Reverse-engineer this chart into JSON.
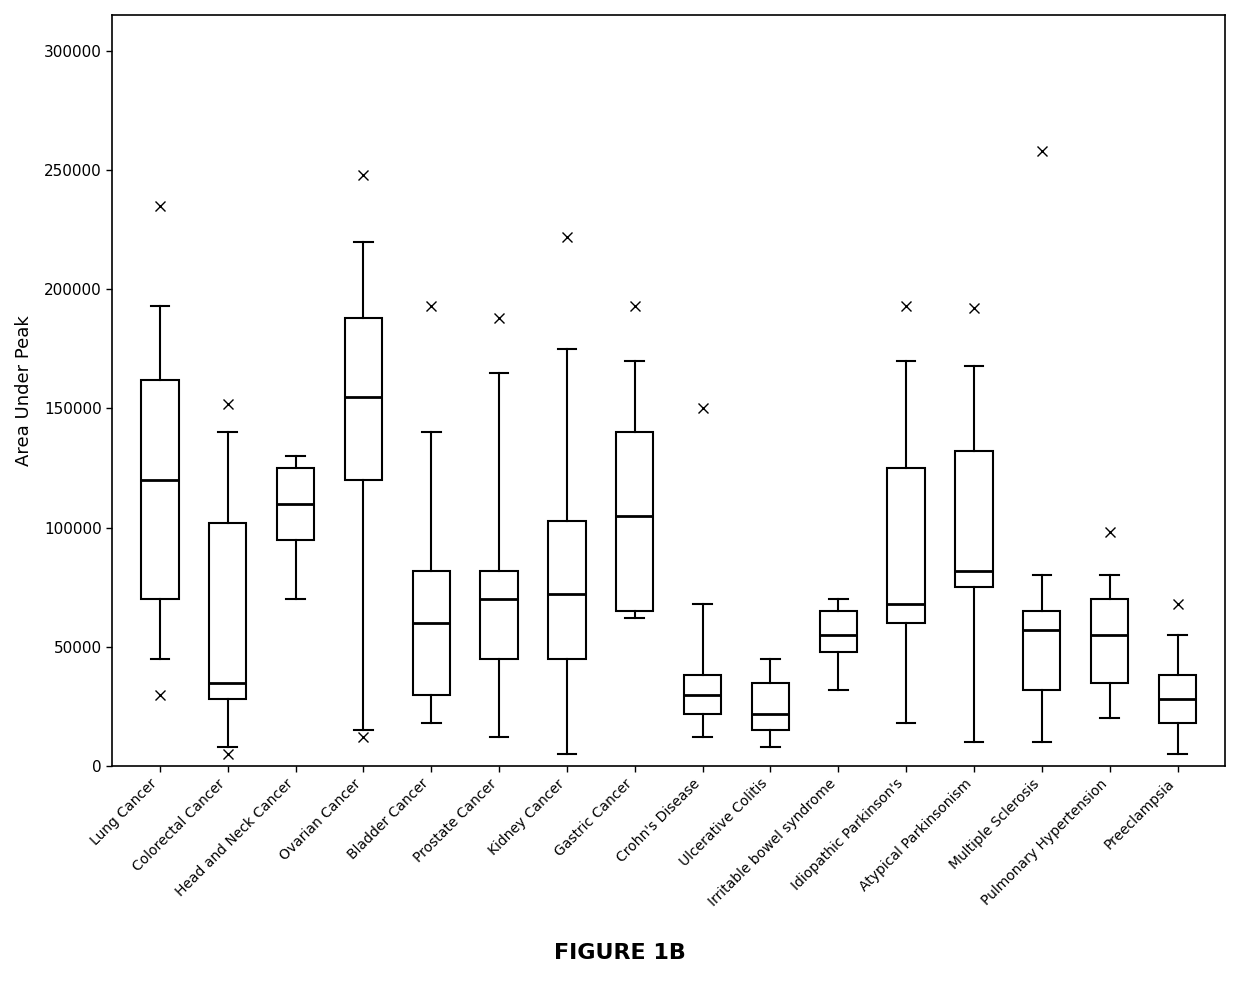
{
  "categories": [
    "Lung Cancer",
    "Colorectal Cancer",
    "Head and Neck Cancer",
    "Ovarian Cancer",
    "Bladder Cancer",
    "Prostate Cancer",
    "Kidney Cancer",
    "Gastric Cancer",
    "Crohn's Disease",
    "Ulcerative Colitis",
    "Irritable bowel syndrome",
    "Idiopathic Parkinson's",
    "Atypical Parkinsonism",
    "Multiple Sclerosis",
    "Pulmonary Hypertension",
    "Preeclampsia"
  ],
  "box_data": [
    {
      "q1": 70000,
      "median": 120000,
      "q3": 162000,
      "whislo": 45000,
      "whishi": 193000,
      "fliers_high": [
        235000
      ],
      "fliers_low": [
        30000
      ]
    },
    {
      "q1": 28000,
      "median": 35000,
      "q3": 102000,
      "whislo": 8000,
      "whishi": 140000,
      "fliers_high": [
        152000
      ],
      "fliers_low": [
        5000
      ]
    },
    {
      "q1": 95000,
      "median": 110000,
      "q3": 125000,
      "whislo": 70000,
      "whishi": 130000,
      "fliers_high": [],
      "fliers_low": []
    },
    {
      "q1": 120000,
      "median": 155000,
      "q3": 188000,
      "whislo": 15000,
      "whishi": 220000,
      "fliers_high": [
        248000
      ],
      "fliers_low": [
        12000
      ]
    },
    {
      "q1": 30000,
      "median": 60000,
      "q3": 82000,
      "whislo": 18000,
      "whishi": 140000,
      "fliers_high": [
        193000
      ],
      "fliers_low": []
    },
    {
      "q1": 45000,
      "median": 70000,
      "q3": 82000,
      "whislo": 12000,
      "whishi": 165000,
      "fliers_high": [
        188000
      ],
      "fliers_low": []
    },
    {
      "q1": 45000,
      "median": 72000,
      "q3": 103000,
      "whislo": 5000,
      "whishi": 175000,
      "fliers_high": [
        222000
      ],
      "fliers_low": []
    },
    {
      "q1": 65000,
      "median": 105000,
      "q3": 140000,
      "whislo": 62000,
      "whishi": 170000,
      "fliers_high": [
        193000
      ],
      "fliers_low": []
    },
    {
      "q1": 22000,
      "median": 30000,
      "q3": 38000,
      "whislo": 12000,
      "whishi": 68000,
      "fliers_high": [
        150000
      ],
      "fliers_low": []
    },
    {
      "q1": 15000,
      "median": 22000,
      "q3": 35000,
      "whislo": 8000,
      "whishi": 45000,
      "fliers_high": [],
      "fliers_low": []
    },
    {
      "q1": 48000,
      "median": 55000,
      "q3": 65000,
      "whislo": 32000,
      "whishi": 70000,
      "fliers_high": [],
      "fliers_low": []
    },
    {
      "q1": 60000,
      "median": 68000,
      "q3": 125000,
      "whislo": 18000,
      "whishi": 170000,
      "fliers_high": [
        193000
      ],
      "fliers_low": []
    },
    {
      "q1": 75000,
      "median": 82000,
      "q3": 132000,
      "whislo": 10000,
      "whishi": 168000,
      "fliers_high": [
        192000
      ],
      "fliers_low": []
    },
    {
      "q1": 32000,
      "median": 57000,
      "q3": 65000,
      "whislo": 10000,
      "whishi": 80000,
      "fliers_high": [
        258000
      ],
      "fliers_low": []
    },
    {
      "q1": 35000,
      "median": 55000,
      "q3": 70000,
      "whislo": 20000,
      "whishi": 80000,
      "fliers_high": [
        98000
      ],
      "fliers_low": []
    },
    {
      "q1": 18000,
      "median": 28000,
      "q3": 38000,
      "whislo": 5000,
      "whishi": 55000,
      "fliers_high": [
        68000
      ],
      "fliers_low": []
    }
  ],
  "ylabel": "Area Under Peak",
  "figure_label": "FIGURE 1B",
  "ylim": [
    0,
    315000
  ],
  "yticks": [
    0,
    50000,
    100000,
    150000,
    200000,
    250000,
    300000
  ],
  "background_color": "#ffffff",
  "box_facecolor": "#ffffff",
  "box_edgecolor": "#000000",
  "median_color": "#000000",
  "whisker_color": "#000000",
  "flier_marker": "x",
  "flier_color": "#000000"
}
